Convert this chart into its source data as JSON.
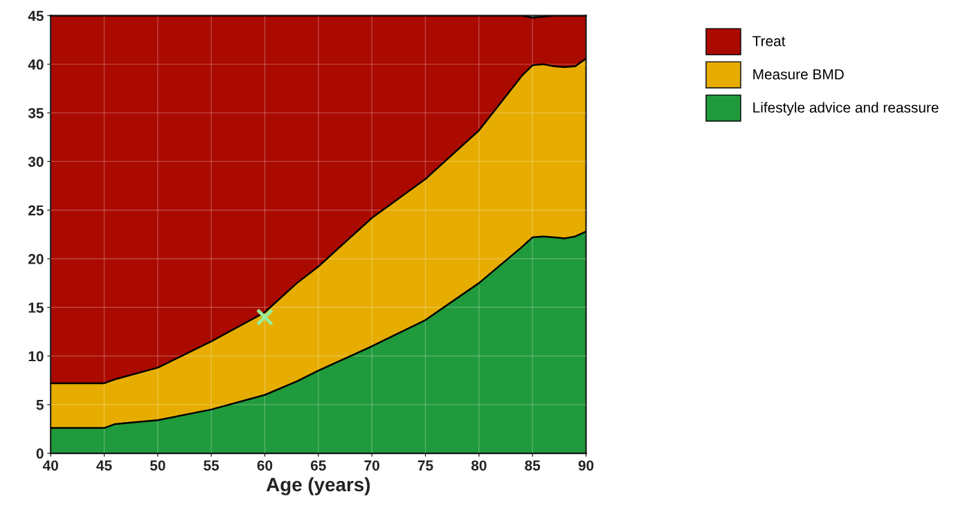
{
  "chart_data": {
    "type": "area",
    "stacked": true,
    "xlabel": "Age (years)",
    "x": [
      40,
      45,
      46,
      47,
      50,
      55,
      60,
      63,
      65,
      70,
      75,
      80,
      84,
      85,
      86,
      87,
      88,
      89,
      90
    ],
    "xlim": [
      40,
      90
    ],
    "xticks": [
      40,
      45,
      50,
      55,
      60,
      65,
      70,
      75,
      80,
      85,
      90
    ],
    "ylim": [
      0,
      45
    ],
    "yticks": [
      0,
      5,
      10,
      15,
      20,
      25,
      30,
      35,
      40,
      45
    ],
    "grid": true,
    "legend": "right",
    "series": [
      {
        "name": "Lifestyle advice and reassure",
        "color": "#1f9a3c",
        "values": [
          2.6,
          2.6,
          3.0,
          3.1,
          3.4,
          4.5,
          6.0,
          7.4,
          8.5,
          11.0,
          13.7,
          17.5,
          21.2,
          22.2,
          22.3,
          22.2,
          22.1,
          22.3,
          22.8
        ]
      },
      {
        "name": "Measure BMD",
        "color": "#e6ad00",
        "values": [
          4.6,
          4.6,
          4.6,
          4.8,
          5.4,
          7.0,
          8.5,
          10.1,
          10.7,
          13.2,
          14.5,
          15.7,
          17.6,
          17.7,
          17.7,
          17.6,
          17.6,
          17.5,
          17.8
        ]
      },
      {
        "name": "Treat",
        "color": "#aa0a00",
        "values": [
          37.8,
          37.8,
          37.4,
          37.1,
          36.2,
          33.5,
          30.5,
          27.5,
          25.8,
          20.8,
          16.8,
          11.8,
          6.2,
          4.9,
          4.9,
          5.2,
          5.3,
          5.2,
          4.4
        ]
      },
      {
        "type": "scatter",
        "x": [
          60
        ],
        "values": [
          14
        ],
        "color": "#99ee99",
        "marker": "cross"
      }
    ]
  }
}
